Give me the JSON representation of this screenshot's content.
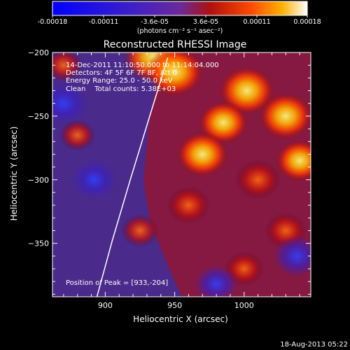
{
  "chart_data": {
    "type": "heatmap",
    "title": "Reconstructed RHESSI Image",
    "xlabel": "Heliocentric X (arcsec)",
    "ylabel": "Heliocentric Y (arcsec)",
    "xlim": [
      862,
      1048
    ],
    "ylim": [
      -392,
      -200
    ],
    "xticks": [
      900,
      950,
      1000
    ],
    "yticks": [
      -200,
      -250,
      -300,
      -350
    ],
    "colorbar": {
      "tick_labels": [
        "-0.00018",
        "-0.00011",
        "-3.6e-05",
        "3.6e-05",
        "0.00011",
        "0.00018"
      ],
      "range": [
        -0.00018,
        0.00018
      ],
      "unit_label": "(photons cm⁻² s⁻¹ asec⁻²)"
    },
    "info_lines": [
      "14-Dec-2011 11:10:50.000 to 11:14:04.000",
      "Detectors: 4F 5F 6F 7F 8F, Att 0",
      "Energy Range: 25.0 - 50.0 keV",
      "Clean    Total counts: 5.38E+03"
    ],
    "peak_label": "Position of Peak = [933,-204]",
    "peak": {
      "x": 933,
      "y": -204
    },
    "limb_curve": [
      [
        894,
        -392
      ],
      [
        905,
        -348
      ],
      [
        918,
        -300
      ],
      [
        932,
        -250
      ],
      [
        945,
        -204
      ]
    ],
    "hot_spots": [
      {
        "x": 935,
        "y": -203,
        "v": 0.00018
      },
      {
        "x": 950,
        "y": -215,
        "v": 0.00016
      },
      {
        "x": 1002,
        "y": -230,
        "v": 0.00015
      },
      {
        "x": 985,
        "y": -255,
        "v": 0.00012
      },
      {
        "x": 1030,
        "y": -250,
        "v": 0.00014
      },
      {
        "x": 970,
        "y": -280,
        "v": 0.00013
      },
      {
        "x": 1040,
        "y": -285,
        "v": 0.00011
      },
      {
        "x": 1010,
        "y": -300,
        "v": 0.0001
      },
      {
        "x": 960,
        "y": -320,
        "v": 9e-05
      },
      {
        "x": 1030,
        "y": -340,
        "v": 8e-05
      },
      {
        "x": 870,
        "y": -210,
        "v": 6e-05
      },
      {
        "x": 880,
        "y": -265,
        "v": 5e-05
      },
      {
        "x": 925,
        "y": -340,
        "v": 6e-05
      },
      {
        "x": 1000,
        "y": -370,
        "v": 7e-05
      },
      {
        "x": 870,
        "y": -240,
        "v": -0.00012
      },
      {
        "x": 892,
        "y": -300,
        "v": -0.0001
      },
      {
        "x": 1038,
        "y": -360,
        "v": -0.00011
      },
      {
        "x": 980,
        "y": -382,
        "v": -9e-05
      }
    ]
  },
  "footer": {
    "timestamp": "18-Aug-2013 05:22"
  }
}
